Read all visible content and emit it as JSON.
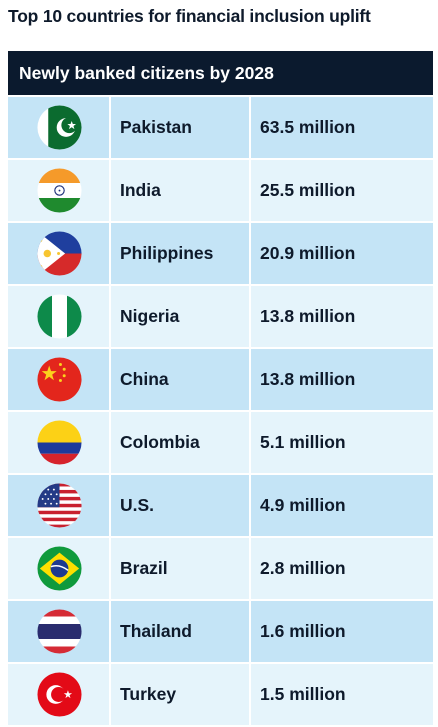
{
  "title": "Top 10 countries for financial inclusion uplift",
  "header": "Newly banked citizens by 2028",
  "chart_data": {
    "type": "table",
    "title": "Top 10 countries for financial inclusion uplift",
    "columns": [
      "",
      "",
      ""
    ],
    "rows": [
      {
        "flag": "pakistan-flag-icon",
        "country": "Pakistan",
        "value_label": "63.5 million",
        "value": 63.5
      },
      {
        "flag": "india-flag-icon",
        "country": "India",
        "value_label": "25.5 million",
        "value": 25.5
      },
      {
        "flag": "philippines-flag-icon",
        "country": "Philippines",
        "value_label": "20.9 million",
        "value": 20.9
      },
      {
        "flag": "nigeria-flag-icon",
        "country": "Nigeria",
        "value_label": "13.8 million",
        "value": 13.8
      },
      {
        "flag": "china-flag-icon",
        "country": "China",
        "value_label": "13.8 million",
        "value": 13.8
      },
      {
        "flag": "colombia-flag-icon",
        "country": "Colombia",
        "value_label": "5.1 million",
        "value": 5.1
      },
      {
        "flag": "us-flag-icon",
        "country": "U.S.",
        "value_label": "4.9 million",
        "value": 4.9
      },
      {
        "flag": "brazil-flag-icon",
        "country": "Brazil",
        "value_label": "2.8 million",
        "value": 2.8
      },
      {
        "flag": "thailand-flag-icon",
        "country": "Thailand",
        "value_label": "1.6 million",
        "value": 1.6
      },
      {
        "flag": "turkey-flag-icon",
        "country": "Turkey",
        "value_label": "1.5 million",
        "value": 1.5
      }
    ]
  },
  "colors": {
    "header_bg": "#0b1a2e",
    "row_dark": "#c4e4f6",
    "row_light": "#e5f4fb",
    "text": "#0e1a2b"
  }
}
